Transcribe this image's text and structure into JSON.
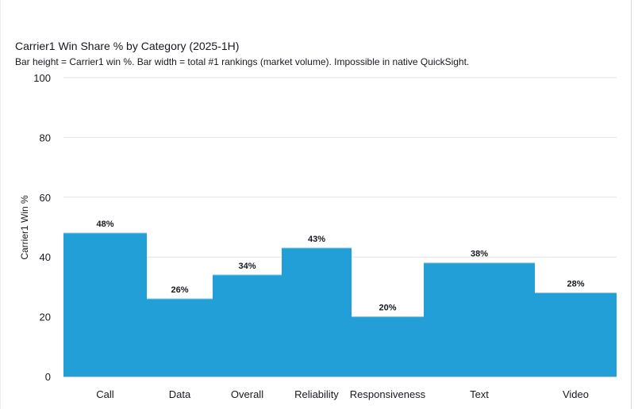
{
  "chart_data": {
    "type": "bar",
    "title": "Carrier1 Win Share % by Category (2025-1H)",
    "subtitle": "Bar height = Carrier1 win %. Bar width = total #1 rankings (market volume). Impossible in native QuickSight.",
    "xlabel": "",
    "ylabel": "Carrier1 Win %",
    "ylim": [
      0,
      100
    ],
    "yticks": [
      0,
      20,
      40,
      60,
      80,
      100
    ],
    "categories": [
      "Call",
      "Data",
      "Overall",
      "Reliability",
      "Responsiveness",
      "Text",
      "Video"
    ],
    "values": [
      48,
      26,
      34,
      43,
      20,
      38,
      28
    ],
    "data_labels": [
      "48%",
      "26%",
      "34%",
      "43%",
      "20%",
      "38%",
      "28%"
    ],
    "relative_widths": [
      105,
      83,
      87,
      88,
      91,
      140,
      103
    ],
    "bar_color": "#239fd8",
    "grid": true
  }
}
